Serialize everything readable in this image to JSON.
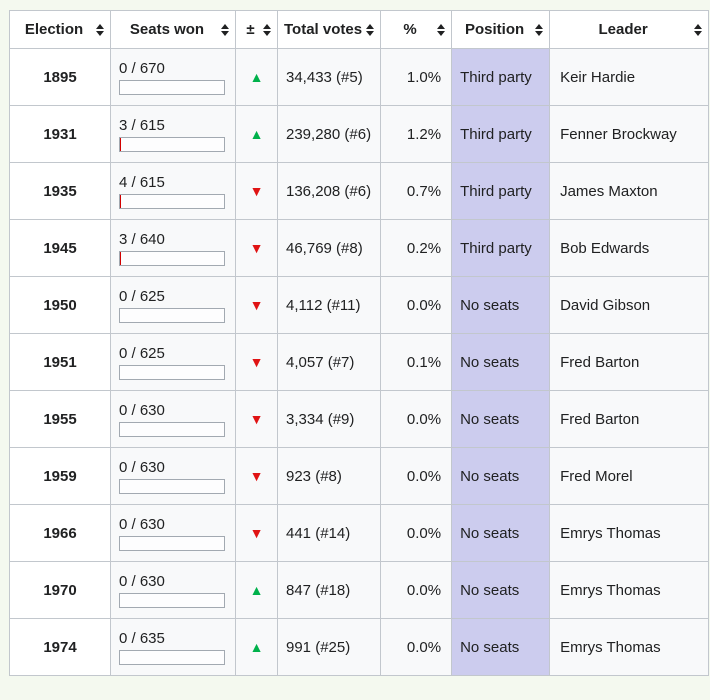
{
  "page": {
    "background": "#f4f9ef"
  },
  "icons": {
    "increase": "▲",
    "decrease": "▼",
    "sort": "sort-arrows"
  },
  "colors": {
    "increase": "#00b14b",
    "decrease": "#e01313",
    "position_cell": "#ccccee",
    "header_bg": "#ffffff",
    "year_cell_bg": "#ffffff",
    "data_cell_bg": "#f8f9fa",
    "table_border": "#a2a9b1"
  },
  "table": {
    "header": {
      "columns": [
        {
          "id": "election",
          "label": "Election",
          "sortable": true
        },
        {
          "id": "seats",
          "label": "Seats won",
          "sortable": true
        },
        {
          "id": "change",
          "label": "±",
          "sortable": true
        },
        {
          "id": "votes",
          "label": "Total votes",
          "sortable": true
        },
        {
          "id": "percent",
          "label": "%",
          "sortable": true
        },
        {
          "id": "position",
          "label": "Position",
          "sortable": true
        },
        {
          "id": "leader",
          "label": "Leader",
          "sortable": true
        }
      ]
    },
    "rows": [
      {
        "election": "1895",
        "seats_label": "0 / 670",
        "seats_won": 0,
        "seats_total": 670,
        "change": "up",
        "votes": "34,433 (#5)",
        "percent": "1.0%",
        "position": "Third party",
        "leader": "Keir Hardie"
      },
      {
        "election": "1931",
        "seats_label": "3 / 615",
        "seats_won": 3,
        "seats_total": 615,
        "change": "up",
        "votes": "239,280 (#6)",
        "percent": "1.2%",
        "position": "Third party",
        "leader": "Fenner Brockway"
      },
      {
        "election": "1935",
        "seats_label": "4 / 615",
        "seats_won": 4,
        "seats_total": 615,
        "change": "down",
        "votes": "136,208 (#6)",
        "percent": "0.7%",
        "position": "Third party",
        "leader": "James Maxton"
      },
      {
        "election": "1945",
        "seats_label": "3 / 640",
        "seats_won": 3,
        "seats_total": 640,
        "change": "down",
        "votes": "46,769 (#8)",
        "percent": "0.2%",
        "position": "Third party",
        "leader": "Bob Edwards"
      },
      {
        "election": "1950",
        "seats_label": "0 / 625",
        "seats_won": 0,
        "seats_total": 625,
        "change": "down",
        "votes": "4,112 (#11)",
        "percent": "0.0%",
        "position": "No seats",
        "leader": "David Gibson"
      },
      {
        "election": "1951",
        "seats_label": "0 / 625",
        "seats_won": 0,
        "seats_total": 625,
        "change": "down",
        "votes": "4,057 (#7)",
        "percent": "0.1%",
        "position": "No seats",
        "leader": "Fred Barton"
      },
      {
        "election": "1955",
        "seats_label": "0 / 630",
        "seats_won": 0,
        "seats_total": 630,
        "change": "down",
        "votes": "3,334 (#9)",
        "percent": "0.0%",
        "position": "No seats",
        "leader": "Fred Barton"
      },
      {
        "election": "1959",
        "seats_label": "0 / 630",
        "seats_won": 0,
        "seats_total": 630,
        "change": "down",
        "votes": "923 (#8)",
        "percent": "0.0%",
        "position": "No seats",
        "leader": "Fred Morel"
      },
      {
        "election": "1966",
        "seats_label": "0 / 630",
        "seats_won": 0,
        "seats_total": 630,
        "change": "down",
        "votes": "441 (#14)",
        "percent": "0.0%",
        "position": "No seats",
        "leader": "Emrys Thomas"
      },
      {
        "election": "1970",
        "seats_label": "0 / 630",
        "seats_won": 0,
        "seats_total": 630,
        "change": "up",
        "votes": "847 (#18)",
        "percent": "0.0%",
        "position": "No seats",
        "leader": "Emrys Thomas"
      },
      {
        "election": "1974",
        "seats_label": "0 / 635",
        "seats_won": 0,
        "seats_total": 635,
        "change": "up",
        "votes": "991 (#25)",
        "percent": "0.0%",
        "position": "No seats",
        "leader": "Emrys Thomas"
      }
    ]
  }
}
